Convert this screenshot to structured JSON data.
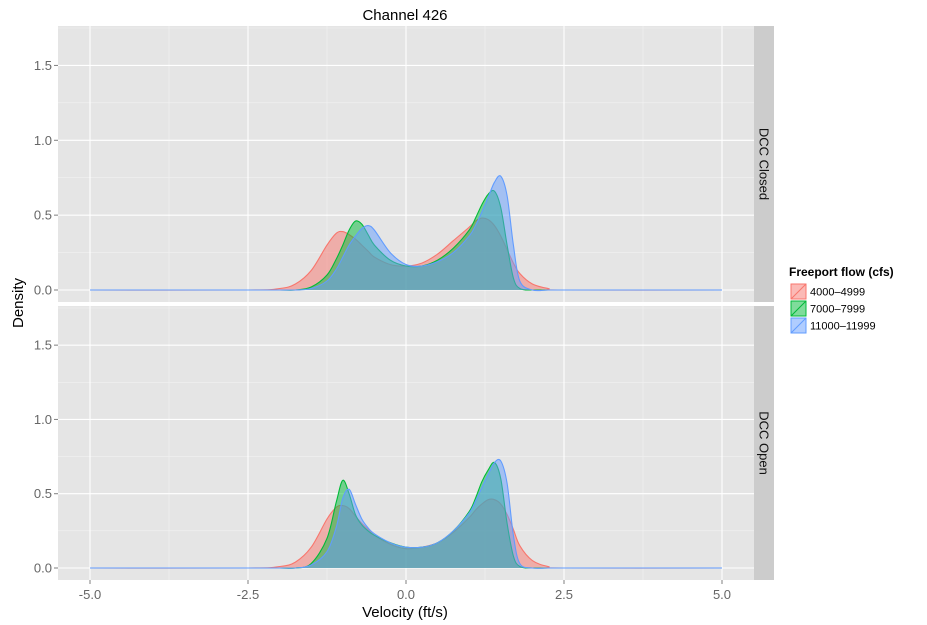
{
  "chart_data": {
    "type": "area",
    "title": "Channel 426",
    "xlabel": "Velocity (ft/s)",
    "ylabel": "Density",
    "xlim": [
      -5,
      5
    ],
    "ylim": [
      0,
      1.75
    ],
    "x_ticks": [
      -5,
      -2.5,
      0,
      2.5,
      5
    ],
    "x_tick_labels": [
      "-5.0",
      "-2.5",
      "0.0",
      "2.5",
      "5.0"
    ],
    "y_ticks": [
      0,
      0.5,
      1,
      1.5
    ],
    "y_tick_labels": [
      "0.0",
      "0.5",
      "1.0",
      "1.5"
    ],
    "grid": true,
    "legend": {
      "title": "Freeport flow (cfs)",
      "position": "right",
      "entries": [
        {
          "label": "4000–4999",
          "color": "#F8766D"
        },
        {
          "label": "7000–7999",
          "color": "#00BA38"
        },
        {
          "label": "11000–11999",
          "color": "#619CFF"
        }
      ]
    },
    "x": [
      -5,
      -2.5,
      -2,
      -1.75,
      -1.5,
      -1.25,
      -1.1,
      -1,
      -0.9,
      -0.8,
      -0.7,
      -0.6,
      -0.5,
      -0.25,
      0,
      0.25,
      0.5,
      0.75,
      1,
      1.1,
      1.2,
      1.3,
      1.4,
      1.5,
      1.6,
      1.7,
      1.8,
      2,
      2.25,
      2.5,
      5
    ],
    "panels": [
      {
        "label": "DCC Closed",
        "series": [
          {
            "name": "4000–4999",
            "values": [
              0,
              0,
              0.01,
              0.04,
              0.13,
              0.3,
              0.38,
              0.39,
              0.37,
              0.34,
              0.3,
              0.26,
              0.22,
              0.17,
              0.16,
              0.18,
              0.24,
              0.33,
              0.42,
              0.46,
              0.48,
              0.47,
              0.43,
              0.36,
              0.27,
              0.18,
              0.11,
              0.04,
              0.01,
              0,
              0
            ]
          },
          {
            "name": "7000–7999",
            "values": [
              0,
              0,
              0,
              0,
              0.02,
              0.1,
              0.21,
              0.3,
              0.4,
              0.46,
              0.44,
              0.37,
              0.3,
              0.2,
              0.16,
              0.16,
              0.2,
              0.28,
              0.4,
              0.48,
              0.57,
              0.64,
              0.66,
              0.55,
              0.3,
              0.08,
              0.01,
              0,
              0,
              0,
              0
            ]
          },
          {
            "name": "11000–11999",
            "values": [
              0,
              0,
              0,
              0,
              0.01,
              0.06,
              0.14,
              0.22,
              0.3,
              0.36,
              0.41,
              0.43,
              0.4,
              0.25,
              0.17,
              0.16,
              0.19,
              0.25,
              0.36,
              0.43,
              0.52,
              0.62,
              0.72,
              0.76,
              0.63,
              0.3,
              0.06,
              0,
              0,
              0,
              0
            ]
          }
        ]
      },
      {
        "label": "DCC Open",
        "series": [
          {
            "name": "4000–4999",
            "values": [
              0,
              0,
              0.01,
              0.04,
              0.14,
              0.33,
              0.41,
              0.42,
              0.4,
              0.35,
              0.3,
              0.26,
              0.22,
              0.16,
              0.13,
              0.14,
              0.17,
              0.24,
              0.34,
              0.39,
              0.43,
              0.46,
              0.46,
              0.43,
              0.36,
              0.26,
              0.15,
              0.05,
              0.01,
              0,
              0
            ]
          },
          {
            "name": "7000–7999",
            "values": [
              0,
              0,
              0,
              0,
              0.03,
              0.2,
              0.45,
              0.59,
              0.5,
              0.36,
              0.29,
              0.25,
              0.22,
              0.17,
              0.14,
              0.14,
              0.17,
              0.25,
              0.38,
              0.47,
              0.58,
              0.66,
              0.71,
              0.6,
              0.3,
              0.08,
              0.01,
              0,
              0,
              0,
              0
            ]
          },
          {
            "name": "11000–11999",
            "values": [
              0,
              0,
              0,
              0,
              0.02,
              0.11,
              0.28,
              0.47,
              0.53,
              0.43,
              0.33,
              0.27,
              0.23,
              0.17,
              0.14,
              0.14,
              0.17,
              0.25,
              0.37,
              0.45,
              0.54,
              0.63,
              0.71,
              0.72,
              0.57,
              0.22,
              0.03,
              0,
              0,
              0,
              0
            ]
          }
        ]
      }
    ]
  }
}
